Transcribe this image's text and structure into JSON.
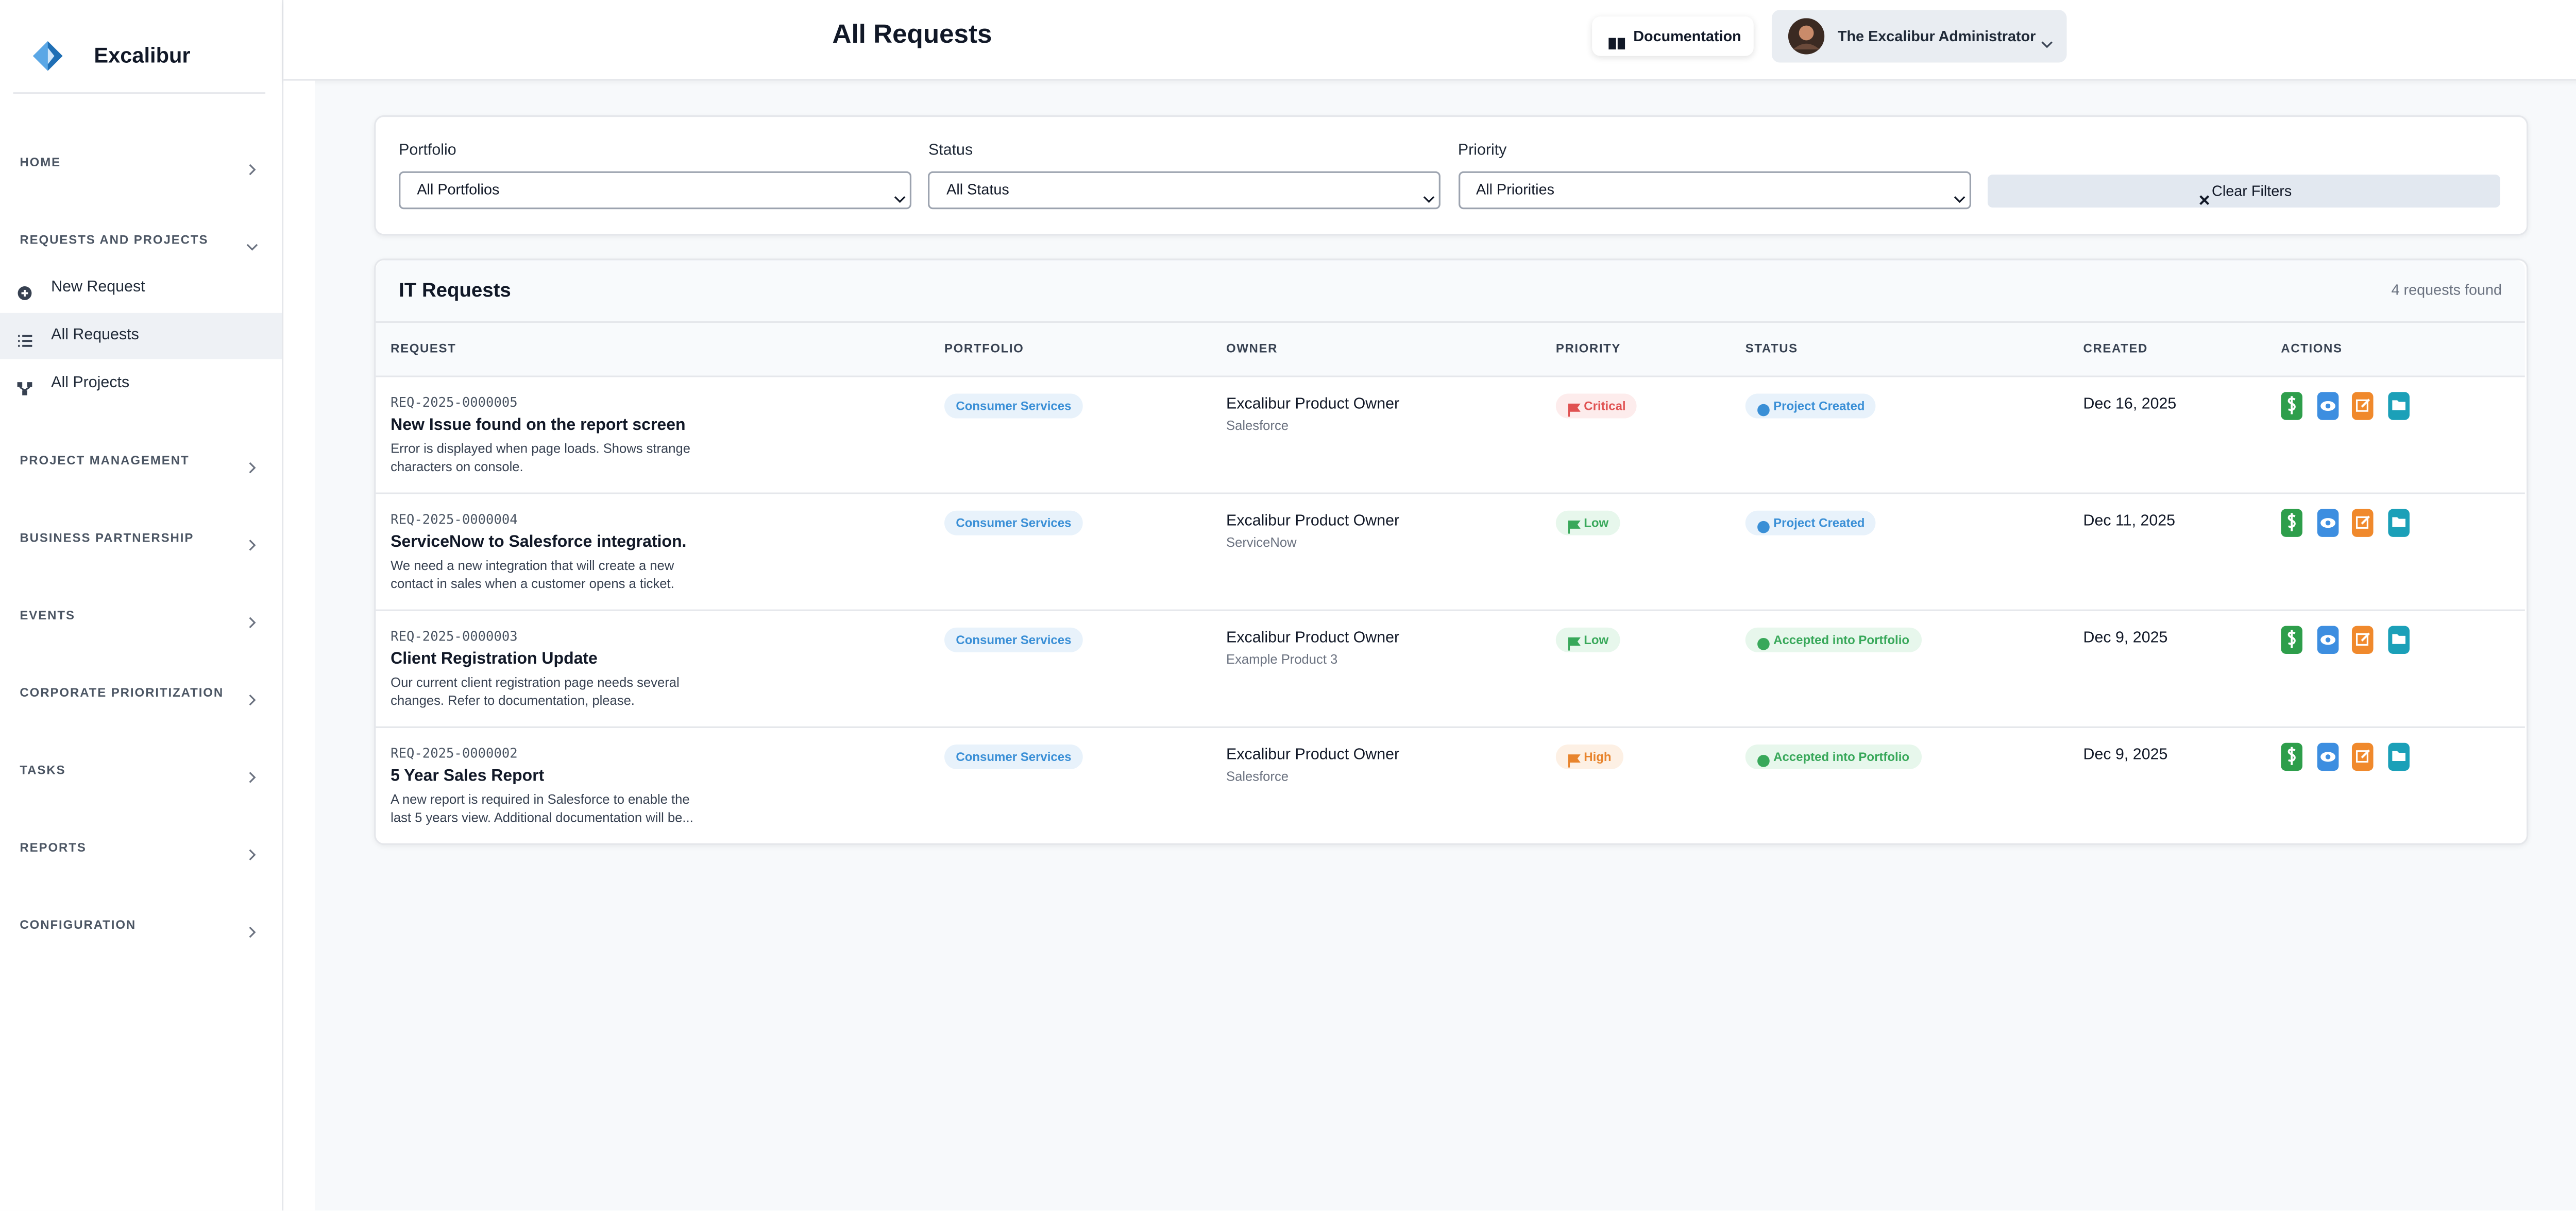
{
  "sidebar": {
    "brand": "Excalibur",
    "sections": [
      {
        "label": "HOME",
        "open": false
      },
      {
        "label": "REQUESTS AND PROJECTS",
        "open": true,
        "items": [
          "New Request",
          "All Requests",
          "All Projects"
        ],
        "active": 1
      },
      {
        "label": "PROJECT MANAGEMENT",
        "open": false
      },
      {
        "label": "BUSINESS PARTNERSHIP",
        "open": false
      },
      {
        "label": "EVENTS",
        "open": false
      },
      {
        "label": "CORPORATE PRIORITIZATION",
        "open": false
      },
      {
        "label": "TASKS",
        "open": false
      },
      {
        "label": "REPORTS",
        "open": false
      },
      {
        "label": "CONFIGURATION",
        "open": false
      }
    ]
  },
  "header": {
    "title": "All Requests",
    "documentation": "Documentation",
    "user": "The Excalibur Administrator"
  },
  "filters": {
    "fields": [
      {
        "label": "Portfolio",
        "value": "All Portfolios"
      },
      {
        "label": "Status",
        "value": "All Status"
      },
      {
        "label": "Priority",
        "value": "All Priorities"
      }
    ],
    "clear": "Clear Filters"
  },
  "table": {
    "title": "IT Requests",
    "count": "4 requests found",
    "columns": [
      "REQUEST",
      "PORTFOLIO",
      "OWNER",
      "PRIORITY",
      "STATUS",
      "CREATED",
      "ACTIONS"
    ],
    "rows": [
      {
        "id": "REQ-2025-0000005",
        "title": "New Issue found on the report screen",
        "description": "Error is displayed when page loads. Shows strange characters on console.",
        "portfolio": "Consumer Services",
        "owner": "Excalibur Product Owner",
        "product": "Salesforce",
        "priority": "Critical",
        "priority_color": "#e05252",
        "priority_bg": "#fdecec",
        "status": "Project Created",
        "status_color": "#3a8fd6",
        "status_bg": "#e8f2fb",
        "created": "Dec 16, 2025"
      },
      {
        "id": "REQ-2025-0000004",
        "title": "ServiceNow to Salesforce integration.",
        "description": "We need a new integration that will create a new contact in sales when a customer opens a ticket.",
        "portfolio": "Consumer Services",
        "owner": "Excalibur Product Owner",
        "product": "ServiceNow",
        "priority": "Low",
        "priority_color": "#38a85a",
        "priority_bg": "#e7f7ec",
        "status": "Project Created",
        "status_color": "#3a8fd6",
        "status_bg": "#e8f2fb",
        "created": "Dec 11, 2025"
      },
      {
        "id": "REQ-2025-0000003",
        "title": "Client Registration Update",
        "description": "Our current client registration page needs several changes. Refer to documentation, please.",
        "portfolio": "Consumer Services",
        "owner": "Excalibur Product Owner",
        "product": "Example Product 3",
        "priority": "Low",
        "priority_color": "#38a85a",
        "priority_bg": "#e7f7ec",
        "status": "Accepted into Portfolio",
        "status_color": "#38a85a",
        "status_bg": "#e7f7ec",
        "created": "Dec 9, 2025"
      },
      {
        "id": "REQ-2025-0000002",
        "title": "5 Year Sales Report",
        "description": "A new report is required in Salesforce to enable the last 5 years view. Additional documentation will be...",
        "portfolio": "Consumer Services",
        "owner": "Excalibur Product Owner",
        "product": "Salesforce",
        "priority": "High",
        "priority_color": "#e8842c",
        "priority_bg": "#fdf0e4",
        "status": "Accepted into Portfolio",
        "status_color": "#38a85a",
        "status_bg": "#e7f7ec",
        "created": "Dec 9, 2025"
      }
    ]
  }
}
